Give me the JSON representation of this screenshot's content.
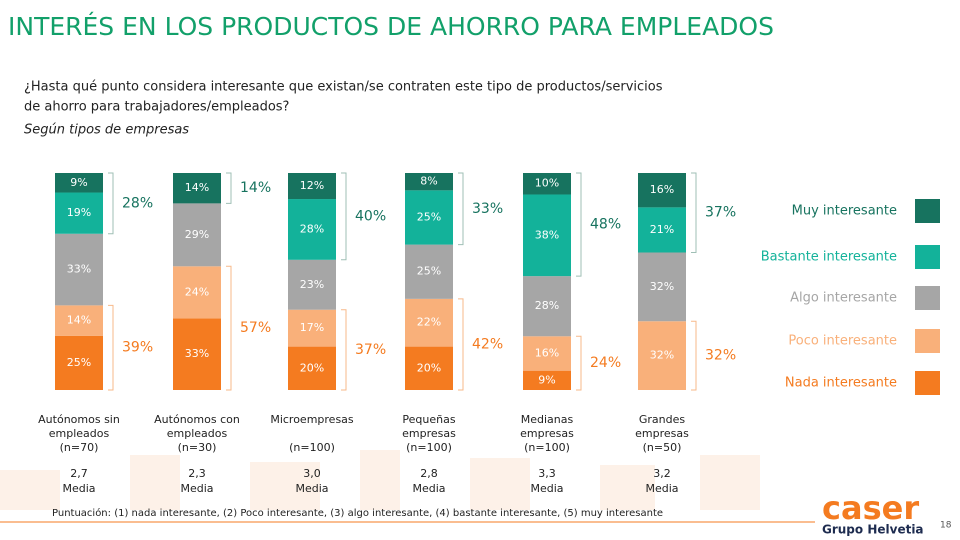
{
  "title": "INTERÉS EN LOS PRODUCTOS DE AHORRO PARA EMPLEADOS",
  "question": [
    "¿Hasta qué punto considera interesante que existan/se contraten este tipo de productos/servicios",
    "de ahorro para trabajadores/empleados?"
  ],
  "subtitle": "Según tipos de empresas",
  "chart_data": {
    "type": "stacked-bar",
    "categories": [
      [
        "Autónomos sin",
        "empleados"
      ],
      [
        "Autónomos con",
        "empleados"
      ],
      [
        "Microempresas"
      ],
      [
        "Pequeñas",
        "empresas"
      ],
      [
        "Medianas",
        "empresas"
      ],
      [
        "Grandes",
        "empresas"
      ]
    ],
    "samples": [
      "(n=70)",
      "(n=30)",
      "(n=100)",
      "(n=100)",
      "(n=100)",
      "(n=50)"
    ],
    "series": [
      {
        "name": "Nada interesante",
        "color": "#f47b20",
        "values": [
          25,
          33,
          20,
          20,
          9,
          null
        ],
        "value_labels": [
          "25%",
          "33%",
          "20%",
          "20%",
          "9%",
          null
        ]
      },
      {
        "name": "Poco interesante",
        "color": "#f9b07a",
        "values": [
          14,
          24,
          17,
          22,
          16,
          32
        ],
        "value_labels": [
          "14%",
          "24%",
          "17%",
          "22%",
          "16%",
          "32%"
        ]
      },
      {
        "name": "Algo interesante",
        "color": "#a6a6a6",
        "values": [
          33,
          29,
          23,
          25,
          28,
          32
        ],
        "value_labels": [
          "33%",
          "29%",
          "23%",
          "25%",
          "28%",
          "32%"
        ]
      },
      {
        "name": "Bastante interesante",
        "color": "#13b29a",
        "values": [
          19,
          null,
          28,
          25,
          38,
          21
        ],
        "value_labels": [
          "19%",
          null,
          "28%",
          "25%",
          "38%",
          "21%"
        ]
      },
      {
        "name": "Muy interesante",
        "color": "#17735f",
        "values": [
          9,
          14,
          12,
          8,
          10,
          16
        ],
        "value_labels": [
          "9%",
          "14%",
          "12%",
          "8%",
          "10%",
          "16%"
        ]
      }
    ],
    "top_totals": {
      "values": [
        28,
        14,
        40,
        33,
        48,
        37
      ],
      "value_labels": [
        "28%",
        "14%",
        "40%",
        "33%",
        "48%",
        "37%"
      ]
    },
    "bottom_totals": {
      "values": [
        39,
        57,
        37,
        42,
        24,
        32
      ],
      "value_labels": [
        "39%",
        "57%",
        "37%",
        "42%",
        "24%",
        "32%"
      ]
    },
    "means": {
      "values": [
        2.7,
        2.3,
        3.0,
        2.8,
        3.3,
        3.2
      ],
      "value_labels": [
        "2,7",
        "2,3",
        "3,0",
        "2,8",
        "3,3",
        "3,2"
      ]
    },
    "mean_label": "Media"
  },
  "footnote": "Puntuación: (1) nada interesante, (2) Poco interesante, (3) algo interesante, (4) bastante interesante, (5) muy interesante",
  "logo": {
    "brand": "caser",
    "group": "Grupo Helvetia"
  },
  "page_number": "18"
}
